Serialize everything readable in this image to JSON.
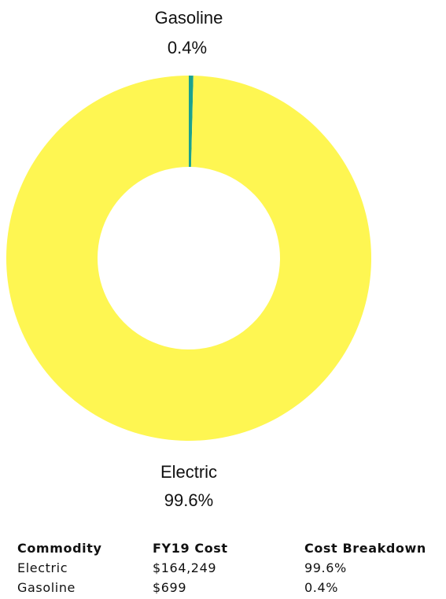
{
  "chart_data": {
    "type": "pie",
    "variant": "donut",
    "slices": [
      {
        "label": "Gasoline",
        "value": 0.4,
        "value_label": "0.4%",
        "color": "#1ba28f"
      },
      {
        "label": "Electric",
        "value": 99.6,
        "value_label": "99.6%",
        "color": "#fef652"
      }
    ],
    "start": "top",
    "direction": "clockwise",
    "legend": "none"
  },
  "table": {
    "headers": [
      "Commodity",
      "FY19 Cost",
      "Cost Breakdown"
    ],
    "rows": [
      [
        "Electric",
        "$164,249",
        "99.6%"
      ],
      [
        "Gasoline",
        "$699",
        "0.4%"
      ]
    ]
  }
}
